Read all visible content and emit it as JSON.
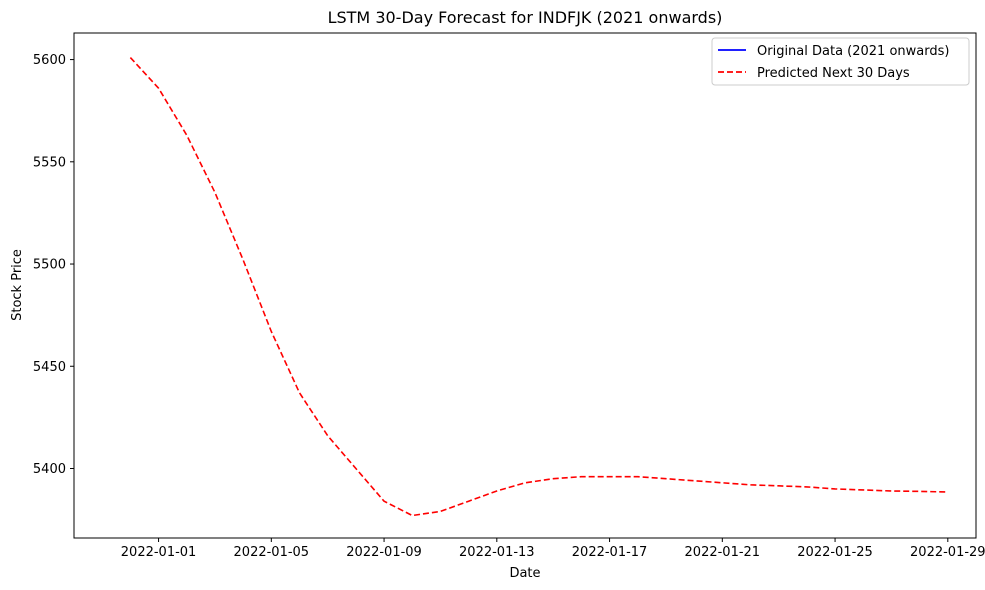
{
  "chart_data": {
    "type": "line",
    "title": "LSTM 30-Day Forecast for INDFJK (2021 onwards)",
    "xlabel": "Date",
    "ylabel": "Stock Price",
    "xlim": [
      "2021-12-29",
      "2022-01-30"
    ],
    "ylim": [
      5366,
      5613
    ],
    "x_ticks": [
      "2022-01-01",
      "2022-01-05",
      "2022-01-09",
      "2022-01-13",
      "2022-01-17",
      "2022-01-21",
      "2022-01-25",
      "2022-01-29"
    ],
    "y_ticks": [
      5400,
      5450,
      5500,
      5550,
      5600
    ],
    "grid": false,
    "legend_position": "top-right",
    "series": [
      {
        "name": "Original Data (2021 onwards)",
        "color": "#0000ff",
        "style": "solid",
        "points": []
      },
      {
        "name": "Predicted Next 30 Days",
        "color": "#ff0000",
        "style": "dashed",
        "points": [
          {
            "x": "2021-12-31",
            "y": 5601
          },
          {
            "x": "2022-01-01",
            "y": 5586
          },
          {
            "x": "2022-01-02",
            "y": 5563
          },
          {
            "x": "2022-01-03",
            "y": 5535
          },
          {
            "x": "2022-01-04",
            "y": 5502
          },
          {
            "x": "2022-01-05",
            "y": 5467
          },
          {
            "x": "2022-01-06",
            "y": 5437
          },
          {
            "x": "2022-01-07",
            "y": 5416
          },
          {
            "x": "2022-01-08",
            "y": 5400
          },
          {
            "x": "2022-01-09",
            "y": 5384
          },
          {
            "x": "2022-01-10",
            "y": 5377
          },
          {
            "x": "2022-01-11",
            "y": 5379
          },
          {
            "x": "2022-01-12",
            "y": 5384
          },
          {
            "x": "2022-01-13",
            "y": 5389
          },
          {
            "x": "2022-01-14",
            "y": 5393
          },
          {
            "x": "2022-01-15",
            "y": 5395
          },
          {
            "x": "2022-01-16",
            "y": 5396
          },
          {
            "x": "2022-01-17",
            "y": 5396
          },
          {
            "x": "2022-01-18",
            "y": 5396
          },
          {
            "x": "2022-01-19",
            "y": 5395
          },
          {
            "x": "2022-01-20",
            "y": 5394
          },
          {
            "x": "2022-01-21",
            "y": 5393
          },
          {
            "x": "2022-01-22",
            "y": 5392
          },
          {
            "x": "2022-01-23",
            "y": 5391.5
          },
          {
            "x": "2022-01-24",
            "y": 5391
          },
          {
            "x": "2022-01-25",
            "y": 5390
          },
          {
            "x": "2022-01-26",
            "y": 5389.5
          },
          {
            "x": "2022-01-27",
            "y": 5389
          },
          {
            "x": "2022-01-28",
            "y": 5388.8
          },
          {
            "x": "2022-01-29",
            "y": 5388.5
          }
        ]
      }
    ]
  }
}
